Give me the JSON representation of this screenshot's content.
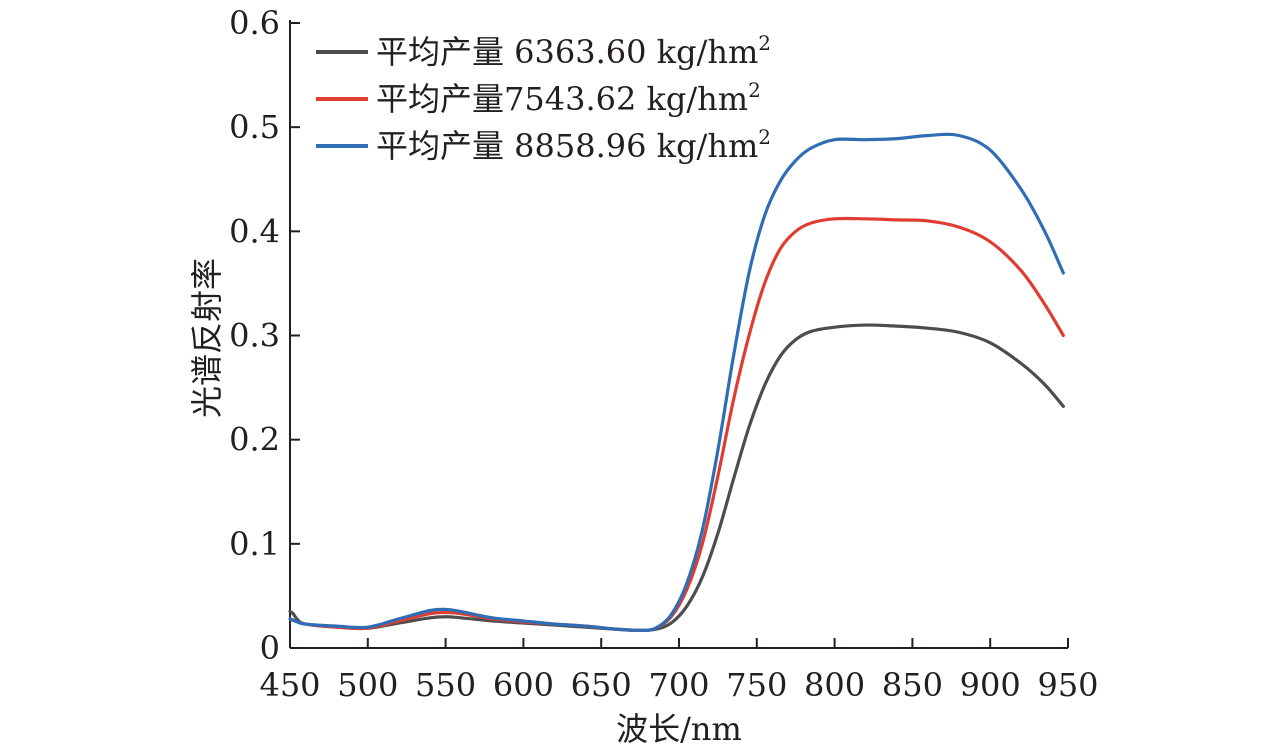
{
  "chart_data": {
    "type": "line",
    "title": "",
    "xlabel": "波长/nm",
    "ylabel": "光谱反射率",
    "xlim": [
      450,
      950
    ],
    "ylim": [
      0,
      0.6
    ],
    "xticks": [
      450,
      500,
      550,
      600,
      650,
      700,
      750,
      800,
      850,
      900,
      950
    ],
    "yticks": [
      0,
      0.1,
      0.2,
      0.3,
      0.4,
      0.5,
      0.6
    ],
    "ytick_labels": [
      "0",
      "0.1",
      "0.2",
      "0.3",
      "0.4",
      "0.5",
      "0.6"
    ],
    "grid": false,
    "legend_position": "top-left",
    "series": [
      {
        "name": "平均产量 6363.60 kg/hm²",
        "legend_main": "平均产量 6363.60 kg/hm",
        "legend_sup": "2",
        "color": "#4d4d4f",
        "x": [
          450,
          452,
          455,
          460,
          480,
          500,
          520,
          540,
          550,
          560,
          580,
          600,
          620,
          640,
          660,
          675,
          685,
          695,
          705,
          715,
          725,
          735,
          745,
          755,
          765,
          775,
          785,
          800,
          820,
          840,
          860,
          880,
          900,
          920,
          935,
          947
        ],
        "y": [
          0.035,
          0.033,
          0.027,
          0.023,
          0.02,
          0.019,
          0.024,
          0.029,
          0.03,
          0.029,
          0.026,
          0.024,
          0.022,
          0.02,
          0.018,
          0.017,
          0.018,
          0.024,
          0.04,
          0.068,
          0.11,
          0.162,
          0.212,
          0.252,
          0.28,
          0.296,
          0.304,
          0.308,
          0.31,
          0.309,
          0.307,
          0.303,
          0.293,
          0.273,
          0.253,
          0.232
        ]
      },
      {
        "name": "平均产量7543.62 kg/hm²",
        "legend_main": "平均产量7543.62 kg/hm",
        "legend_sup": "2",
        "color": "#e03c31",
        "x": [
          450,
          455,
          460,
          480,
          500,
          520,
          540,
          550,
          560,
          580,
          600,
          620,
          640,
          660,
          675,
          685,
          695,
          705,
          715,
          725,
          735,
          745,
          755,
          765,
          775,
          785,
          800,
          820,
          840,
          860,
          880,
          900,
          920,
          935,
          947
        ],
        "y": [
          0.028,
          0.025,
          0.023,
          0.02,
          0.019,
          0.026,
          0.033,
          0.034,
          0.033,
          0.028,
          0.025,
          0.023,
          0.021,
          0.018,
          0.017,
          0.019,
          0.03,
          0.056,
          0.1,
          0.165,
          0.238,
          0.3,
          0.35,
          0.383,
          0.4,
          0.408,
          0.412,
          0.412,
          0.411,
          0.41,
          0.404,
          0.39,
          0.362,
          0.33,
          0.3
        ]
      },
      {
        "name": "平均产量 8858.96 kg/hm²",
        "legend_main": "平均产量 8858.96 kg/hm",
        "legend_sup": "2",
        "color": "#2f6db5",
        "x": [
          450,
          455,
          460,
          480,
          500,
          520,
          540,
          550,
          560,
          580,
          600,
          620,
          640,
          660,
          675,
          685,
          695,
          705,
          715,
          725,
          735,
          745,
          755,
          765,
          775,
          785,
          800,
          820,
          840,
          860,
          880,
          900,
          920,
          935,
          947
        ],
        "y": [
          0.028,
          0.025,
          0.023,
          0.021,
          0.02,
          0.028,
          0.036,
          0.037,
          0.035,
          0.029,
          0.026,
          0.023,
          0.021,
          0.018,
          0.017,
          0.019,
          0.032,
          0.062,
          0.113,
          0.19,
          0.28,
          0.36,
          0.415,
          0.448,
          0.468,
          0.48,
          0.488,
          0.488,
          0.489,
          0.492,
          0.492,
          0.478,
          0.44,
          0.4,
          0.36
        ]
      }
    ]
  }
}
